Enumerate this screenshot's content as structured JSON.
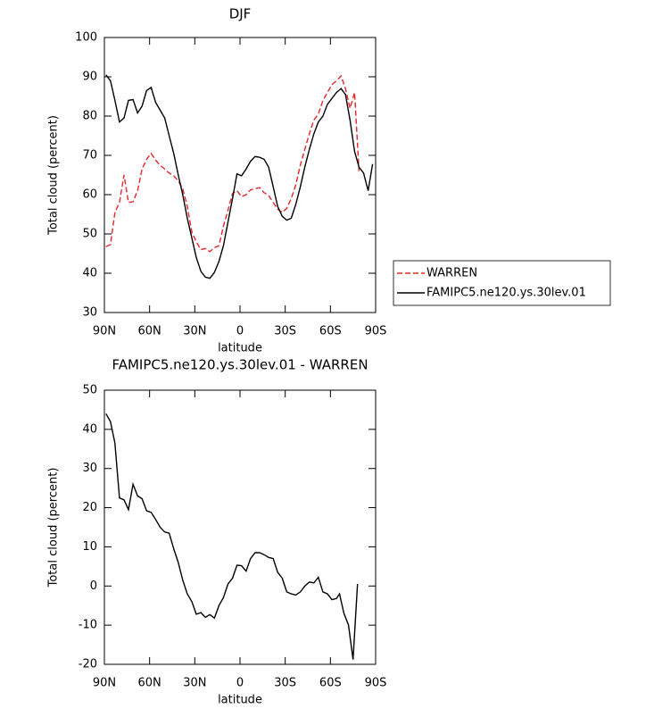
{
  "chart_data": [
    {
      "type": "line",
      "title": "DJF",
      "xlabel": "latitude",
      "ylabel": "Total cloud (percent)",
      "x": [
        89,
        86,
        83,
        80,
        77,
        74,
        71,
        68,
        65,
        62,
        59,
        56,
        53,
        50,
        47,
        44,
        41,
        38,
        35,
        32,
        29,
        26,
        23,
        20,
        17,
        14,
        11,
        8,
        5,
        2,
        -1,
        -4,
        -7,
        -10,
        -13,
        -16,
        -19,
        -22,
        -25,
        -28,
        -31,
        -34,
        -37,
        -40,
        -43,
        -46,
        -49,
        -52,
        -55,
        -58,
        -61,
        -64,
        -67,
        -70,
        -73,
        -76,
        -79,
        -82,
        -85,
        -88
      ],
      "series": [
        {
          "name": "WARREN",
          "color": "#e8262a",
          "dash": true,
          "values": [
            46.8,
            47.3,
            55.5,
            58,
            65,
            58,
            58.2,
            61,
            66.5,
            69,
            70.5,
            68.8,
            67.5,
            66.5,
            65.5,
            64.8,
            63.5,
            61.5,
            57,
            50.5,
            48,
            46,
            46.3,
            45.5,
            46.5,
            47,
            52,
            56,
            60.3,
            61,
            59.5,
            60,
            61.2,
            61.5,
            61.8,
            60.5,
            59.8,
            58,
            56.3,
            55.5,
            56.5,
            59,
            62.5,
            67.5,
            71.5,
            75.5,
            79,
            80.5,
            84,
            86,
            88,
            89,
            90.2,
            87,
            82,
            86,
            66,
            null,
            null,
            null
          ]
        },
        {
          "name": "FAMIPC5.ne120.ys.30lev.01",
          "color": "#000000",
          "dash": false,
          "values": [
            90.5,
            89,
            84,
            78.5,
            79.5,
            84,
            84.2,
            80.8,
            82.5,
            86.5,
            87.3,
            83.5,
            81.5,
            79.5,
            75,
            70.5,
            65,
            60,
            54,
            49,
            44,
            40.5,
            39,
            38.7,
            40.2,
            43,
            47,
            53,
            59,
            65.3,
            64.8,
            66.5,
            68.5,
            69.7,
            69.5,
            69,
            67,
            62,
            57,
            54.5,
            53.5,
            54,
            57.5,
            62,
            67,
            71.5,
            75.5,
            78.5,
            80,
            83,
            84.5,
            86,
            87,
            85.5,
            79,
            71,
            67,
            65.5,
            61,
            67.8
          ]
        }
      ],
      "xlim": [
        90,
        -90
      ],
      "xticks": [
        {
          "value": 90,
          "label": "90N"
        },
        {
          "value": 60,
          "label": "60N"
        },
        {
          "value": 30,
          "label": "30N"
        },
        0,
        {
          "value": -30,
          "label": "30S"
        },
        {
          "value": -60,
          "label": "60S"
        },
        {
          "value": -90,
          "label": "90S"
        }
      ],
      "ylim": [
        30,
        100
      ],
      "yticks": [
        30,
        40,
        50,
        60,
        70,
        80,
        90,
        100
      ],
      "legend": "right"
    },
    {
      "type": "line",
      "title": "FAMIPC5.ne120.ys.30lev.01 - WARREN",
      "xlabel": "latitude",
      "ylabel": "Total cloud (percent)",
      "x": [
        89,
        86,
        83,
        80,
        77,
        74,
        71,
        68,
        65,
        62,
        59,
        56,
        53,
        50,
        47,
        44,
        41,
        38,
        35,
        32,
        29,
        26,
        23,
        20,
        17,
        14,
        11,
        8,
        5,
        2,
        -1,
        -4,
        -7,
        -10,
        -13,
        -16,
        -19,
        -22,
        -25,
        -28,
        -31,
        -34,
        -37,
        -40,
        -43,
        -46,
        -49,
        -52,
        -55,
        -58,
        -61,
        -64,
        -66,
        -69,
        -72,
        -75,
        -78
      ],
      "values": [
        44,
        42,
        36.5,
        22.5,
        22,
        19.5,
        26,
        23,
        22.3,
        19.2,
        18.8,
        17,
        15,
        13.8,
        13.5,
        9.5,
        6,
        1.5,
        -2,
        -4,
        -7.2,
        -6.8,
        -8,
        -7.3,
        -8.2,
        -5,
        -3,
        0.5,
        2,
        5.3,
        5.2,
        3.8,
        7,
        8.5,
        8.5,
        8,
        7.3,
        7,
        3.5,
        2,
        -1.5,
        -2,
        -2.3,
        -1.5,
        0,
        1,
        0.8,
        2.2,
        -1.5,
        -2,
        -3.5,
        -3.2,
        -2,
        -7,
        -10,
        -18.8,
        0.5
      ],
      "color": "#000000",
      "xlim": [
        90,
        -90
      ],
      "xticks": [
        {
          "value": 90,
          "label": "90N"
        },
        {
          "value": 60,
          "label": "60N"
        },
        {
          "value": 30,
          "label": "30N"
        },
        0,
        {
          "value": -30,
          "label": "30S"
        },
        {
          "value": -60,
          "label": "60S"
        },
        {
          "value": -90,
          "label": "90S"
        }
      ],
      "ylim": [
        -20,
        50
      ],
      "yticks": [
        -20,
        -10,
        0,
        10,
        20,
        30,
        40,
        50
      ]
    }
  ]
}
